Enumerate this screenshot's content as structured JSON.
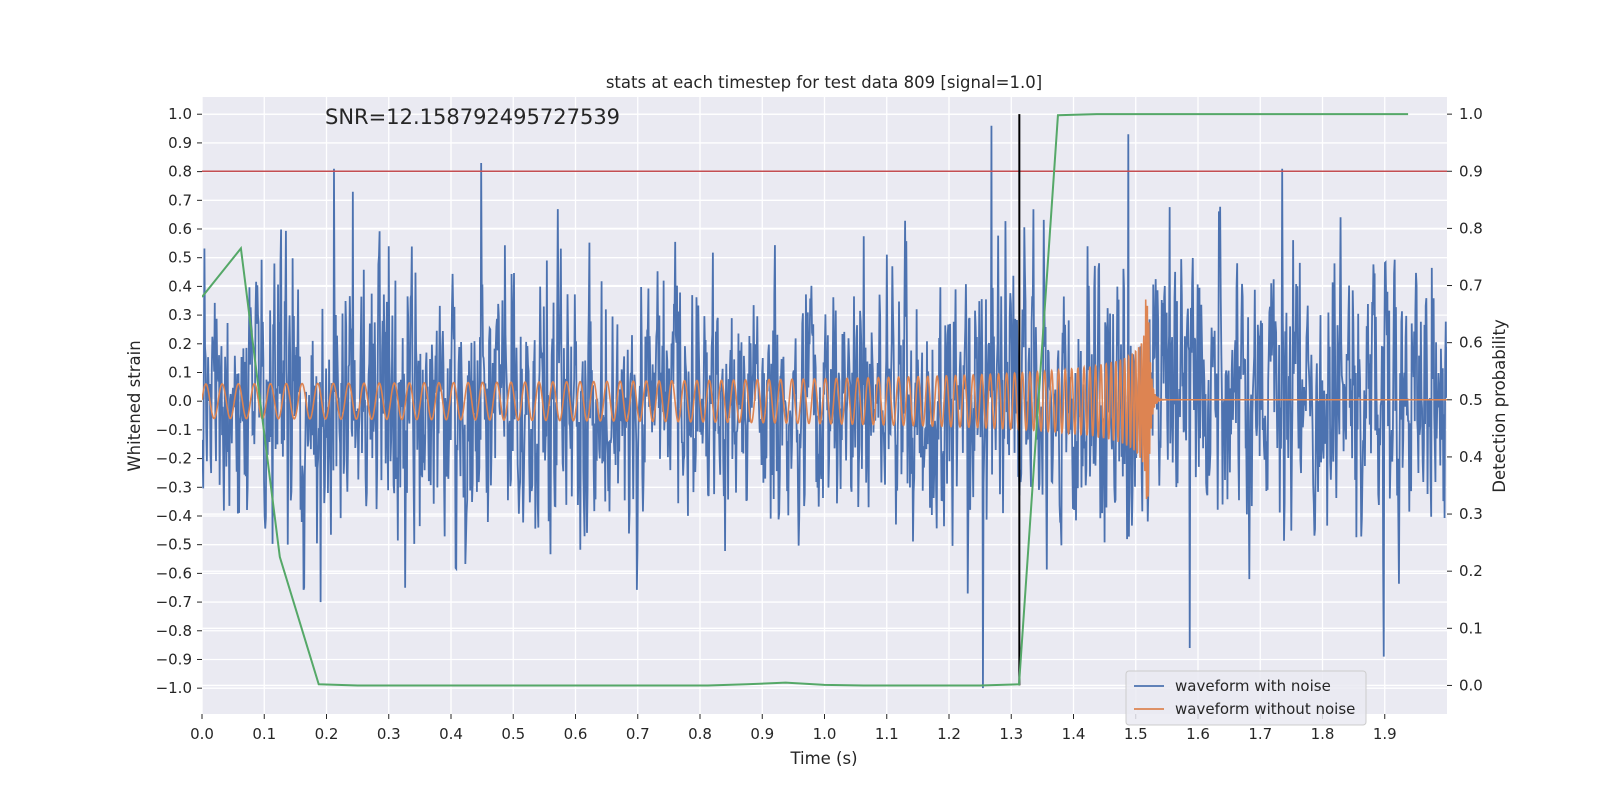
{
  "chart_data": {
    "type": "line",
    "title": "stats at each timestep for test data 809 [signal=1.0]",
    "xlabel": "Time (s)",
    "ylabel": "Whitened strain",
    "y2label": "Detection probability",
    "annotation": "SNR=12.158792495727539",
    "xlim": [
      0.0,
      2.0
    ],
    "ylim": [
      -1.09,
      1.06
    ],
    "y2lim": [
      -0.05,
      1.03
    ],
    "xticks": [
      "0.0",
      "0.1",
      "0.2",
      "0.3",
      "0.4",
      "0.5",
      "0.6",
      "0.7",
      "0.8",
      "0.9",
      "1.0",
      "1.1",
      "1.2",
      "1.3",
      "1.4",
      "1.5",
      "1.6",
      "1.7",
      "1.8",
      "1.9"
    ],
    "yticks": [
      "1.0",
      "0.9",
      "0.8",
      "0.7",
      "0.6",
      "0.5",
      "0.4",
      "0.3",
      "0.2",
      "0.1",
      "0.0",
      "−0.1",
      "−0.2",
      "−0.3",
      "−0.4",
      "−0.5",
      "−0.6",
      "−0.7",
      "−0.8",
      "−0.9",
      "−1.0"
    ],
    "y2ticks": [
      "1.0",
      "0.9",
      "0.8",
      "0.7",
      "0.6",
      "0.5",
      "0.4",
      "0.3",
      "0.2",
      "0.1",
      "0.0"
    ],
    "grid": true,
    "legend_position": "lower-right",
    "threshold": {
      "axis": "y2",
      "value": 0.9,
      "color": "#c44e52"
    },
    "event_line": {
      "x": 1.313,
      "color": "#000000"
    },
    "series": [
      {
        "name": "waveform with noise",
        "color": "#4c72b0",
        "axis": "y",
        "kind": "noise",
        "samples": 2048,
        "amplitude_std": 0.25,
        "spikes": [
          {
            "x": 0.212,
            "y": 0.81
          },
          {
            "x": 0.448,
            "y": 0.83
          },
          {
            "x": 1.268,
            "y": 0.96
          },
          {
            "x": 1.255,
            "y": -1.0
          },
          {
            "x": 1.488,
            "y": 0.93
          },
          {
            "x": 1.735,
            "y": 0.81
          },
          {
            "x": 1.898,
            "y": -0.89
          },
          {
            "x": 1.587,
            "y": -0.86
          },
          {
            "x": 0.191,
            "y": -0.7
          },
          {
            "x": 0.242,
            "y": 0.73
          }
        ]
      },
      {
        "name": "waveform without noise",
        "color": "#dd8452",
        "axis": "y",
        "kind": "chirp",
        "merger_x": 1.52,
        "start_frequency_hz": 38,
        "start_amplitude": 0.06,
        "peak_amplitude": 0.35
      },
      {
        "name": "",
        "color": "#55a868",
        "axis": "y2",
        "kind": "probability",
        "x": [
          0.0,
          0.0625,
          0.125,
          0.1875,
          0.25,
          0.3125,
          0.375,
          0.4375,
          0.5,
          0.5625,
          0.625,
          0.6875,
          0.75,
          0.8125,
          0.875,
          0.9375,
          1.0,
          1.0625,
          1.125,
          1.1875,
          1.25,
          1.3125,
          1.375,
          1.4375,
          1.5,
          1.5625,
          1.625,
          1.6875,
          1.75,
          1.8125,
          1.875,
          1.9375
        ],
        "y": [
          0.68,
          0.765,
          0.225,
          0.002,
          0.0,
          0.0,
          0.0,
          0.0,
          0.0,
          0.0,
          0.0,
          0.0,
          0.0,
          0.0,
          0.002,
          0.005,
          0.001,
          0.0,
          0.0,
          0.0,
          0.0,
          0.002,
          0.998,
          1.0,
          1.0,
          1.0,
          1.0,
          1.0,
          1.0,
          1.0,
          1.0,
          1.0
        ]
      }
    ]
  }
}
